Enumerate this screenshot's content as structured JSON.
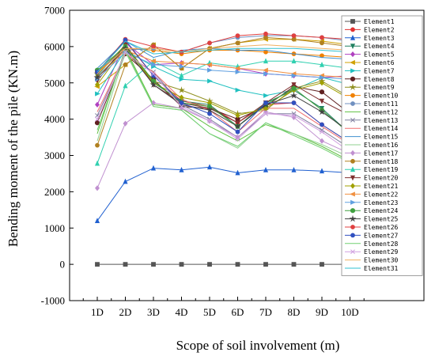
{
  "chart_data": {
    "type": "line",
    "title": "",
    "xlabel": "Scope of soil involvement (m)",
    "ylabel": "Bending moment of the pile (KN.m)",
    "categories": [
      "1D",
      "2D",
      "3D",
      "4D",
      "5D",
      "6D",
      "7D",
      "8D",
      "9D",
      "10D"
    ],
    "ylim": [
      -1000,
      7000
    ],
    "yticks": [
      -1000,
      0,
      1000,
      2000,
      3000,
      4000,
      5000,
      6000,
      7000
    ],
    "grid": false,
    "legend_position": "right",
    "series": [
      {
        "name": "Element1",
        "color": "#555555",
        "marker": "square",
        "values": [
          0,
          0,
          0,
          0,
          0,
          0,
          0,
          0,
          0,
          0
        ]
      },
      {
        "name": "Element2",
        "color": "#e03030",
        "marker": "circle",
        "values": [
          5300,
          6150,
          5200,
          4500,
          4350,
          3900,
          4400,
          4450,
          3850,
          3350
        ]
      },
      {
        "name": "Element3",
        "color": "#2060d0",
        "marker": "triangle",
        "values": [
          1200,
          2280,
          2650,
          2600,
          2680,
          2520,
          2600,
          2600,
          2570,
          2520
        ]
      },
      {
        "name": "Element4",
        "color": "#208060",
        "marker": "tri-down",
        "values": [
          5200,
          6050,
          5000,
          4500,
          4400,
          3800,
          4450,
          4800,
          4300,
          3600
        ]
      },
      {
        "name": "Element5",
        "color": "#b040c0",
        "marker": "diamond",
        "values": [
          4400,
          6100,
          5500,
          5550,
          5500,
          5400,
          5250,
          5200,
          5150,
          5200
        ]
      },
      {
        "name": "Element6",
        "color": "#d0a000",
        "marker": "tri-left",
        "values": [
          4900,
          5500,
          6050,
          5400,
          5950,
          6100,
          6200,
          6200,
          6150,
          6050
        ]
      },
      {
        "name": "Element7",
        "color": "#20c0c0",
        "marker": "tri-right",
        "values": [
          4700,
          5900,
          5450,
          5100,
          5050,
          4800,
          4650,
          4800,
          5150,
          4950
        ]
      },
      {
        "name": "Element8",
        "color": "#602020",
        "marker": "hexagon",
        "values": [
          3900,
          5800,
          5100,
          4350,
          4300,
          4000,
          4350,
          4900,
          4750,
          4150
        ]
      },
      {
        "name": "Element9",
        "color": "#909020",
        "marker": "star",
        "values": [
          5250,
          6050,
          5050,
          4800,
          4500,
          4150,
          4250,
          4850,
          5050,
          4600
        ]
      },
      {
        "name": "Element10",
        "color": "#f08000",
        "marker": "circle",
        "values": [
          5300,
          5950,
          5900,
          5800,
          5900,
          5900,
          5850,
          5800,
          5750,
          5700
        ]
      },
      {
        "name": "Element11",
        "color": "#7090c0",
        "marker": "circle",
        "values": [
          5350,
          5900,
          5950,
          5850,
          6100,
          6250,
          6300,
          6300,
          6250,
          6150
        ]
      },
      {
        "name": "Element12",
        "color": "#60c040",
        "marker": "none",
        "values": [
          3600,
          5950,
          4400,
          4300,
          3800,
          3400,
          3850,
          3600,
          3250,
          2850
        ]
      },
      {
        "name": "Element13",
        "color": "#8080a0",
        "marker": "x",
        "values": [
          4100,
          5800,
          5300,
          4400,
          4000,
          3500,
          4150,
          4150,
          3700,
          3200
        ]
      },
      {
        "name": "Element14",
        "color": "#f07070",
        "marker": "none",
        "values": [
          4200,
          5800,
          5300,
          4550,
          4250,
          3650,
          4300,
          4300,
          3800,
          3300
        ]
      },
      {
        "name": "Element15",
        "color": "#4090d0",
        "marker": "none",
        "values": [
          5400,
          6150,
          5700,
          5900,
          5950,
          5900,
          5900,
          5800,
          5700,
          5650
        ]
      },
      {
        "name": "Element16",
        "color": "#90d090",
        "marker": "none",
        "values": [
          3400,
          5850,
          4350,
          4250,
          3600,
          3200,
          3900,
          3600,
          3300,
          2950
        ]
      },
      {
        "name": "Element17",
        "color": "#c090d0",
        "marker": "diamond",
        "values": [
          2100,
          3880,
          4450,
          4300,
          3950,
          3500,
          4200,
          4050,
          3400,
          3050
        ]
      },
      {
        "name": "Element18",
        "color": "#b08020",
        "marker": "circle",
        "values": [
          3280,
          5500,
          6050,
          5400,
          5950,
          6100,
          6250,
          6200,
          6100,
          6000
        ]
      },
      {
        "name": "Element19",
        "color": "#30d0b0",
        "marker": "triangle",
        "values": [
          2780,
          4920,
          5600,
          5200,
          5550,
          5450,
          5600,
          5600,
          5500,
          5400
        ]
      },
      {
        "name": "Element20",
        "color": "#803030",
        "marker": "tri-down",
        "values": [
          5050,
          6050,
          4950,
          4450,
          4300,
          3900,
          4450,
          4950,
          4500,
          4100
        ]
      },
      {
        "name": "Element21",
        "color": "#a0a000",
        "marker": "diamond",
        "values": [
          4950,
          6000,
          5000,
          4600,
          4450,
          4100,
          4300,
          4800,
          5000,
          4550
        ]
      },
      {
        "name": "Element22",
        "color": "#f09040",
        "marker": "tri-left",
        "values": [
          5150,
          5900,
          5600,
          5550,
          5500,
          5400,
          5350,
          5250,
          5200,
          5150
        ]
      },
      {
        "name": "Element23",
        "color": "#60a0e0",
        "marker": "tri-right",
        "values": [
          5100,
          5850,
          5500,
          5450,
          5350,
          5300,
          5250,
          5200,
          5150,
          5100
        ]
      },
      {
        "name": "Element24",
        "color": "#40a040",
        "marker": "hexagon",
        "values": [
          5350,
          6000,
          5050,
          4450,
          4350,
          3800,
          4400,
          4850,
          4250,
          3600
        ]
      },
      {
        "name": "Element25",
        "color": "#404040",
        "marker": "star",
        "values": [
          5150,
          5950,
          4950,
          4400,
          4250,
          3800,
          4400,
          4650,
          4200,
          3650
        ]
      },
      {
        "name": "Element26",
        "color": "#e04040",
        "marker": "circle",
        "values": [
          5300,
          6200,
          6000,
          5850,
          6100,
          6300,
          6350,
          6300,
          6250,
          6200
        ]
      },
      {
        "name": "Element27",
        "color": "#3050c0",
        "marker": "circle",
        "values": [
          5300,
          6180,
          5200,
          4450,
          4150,
          3650,
          4450,
          4450,
          3850,
          3350
        ]
      },
      {
        "name": "Element28",
        "color": "#70d070",
        "marker": "none",
        "values": [
          3700,
          5900,
          4350,
          4250,
          3600,
          3250,
          3900,
          3550,
          3200,
          2800
        ]
      },
      {
        "name": "Element29",
        "color": "#d0a0e0",
        "marker": "x",
        "values": [
          4000,
          5850,
          5250,
          4350,
          3950,
          3450,
          4150,
          4100,
          3650,
          3100
        ]
      },
      {
        "name": "Element30",
        "color": "#f0b060",
        "marker": "none",
        "values": [
          5250,
          5950,
          5950,
          5850,
          5950,
          6000,
          6050,
          6000,
          5950,
          5900
        ]
      },
      {
        "name": "Element31",
        "color": "#30c0d0",
        "marker": "none",
        "values": [
          5300,
          6150,
          5800,
          5850,
          5900,
          5950,
          5950,
          5950,
          5900,
          5850
        ]
      }
    ]
  }
}
